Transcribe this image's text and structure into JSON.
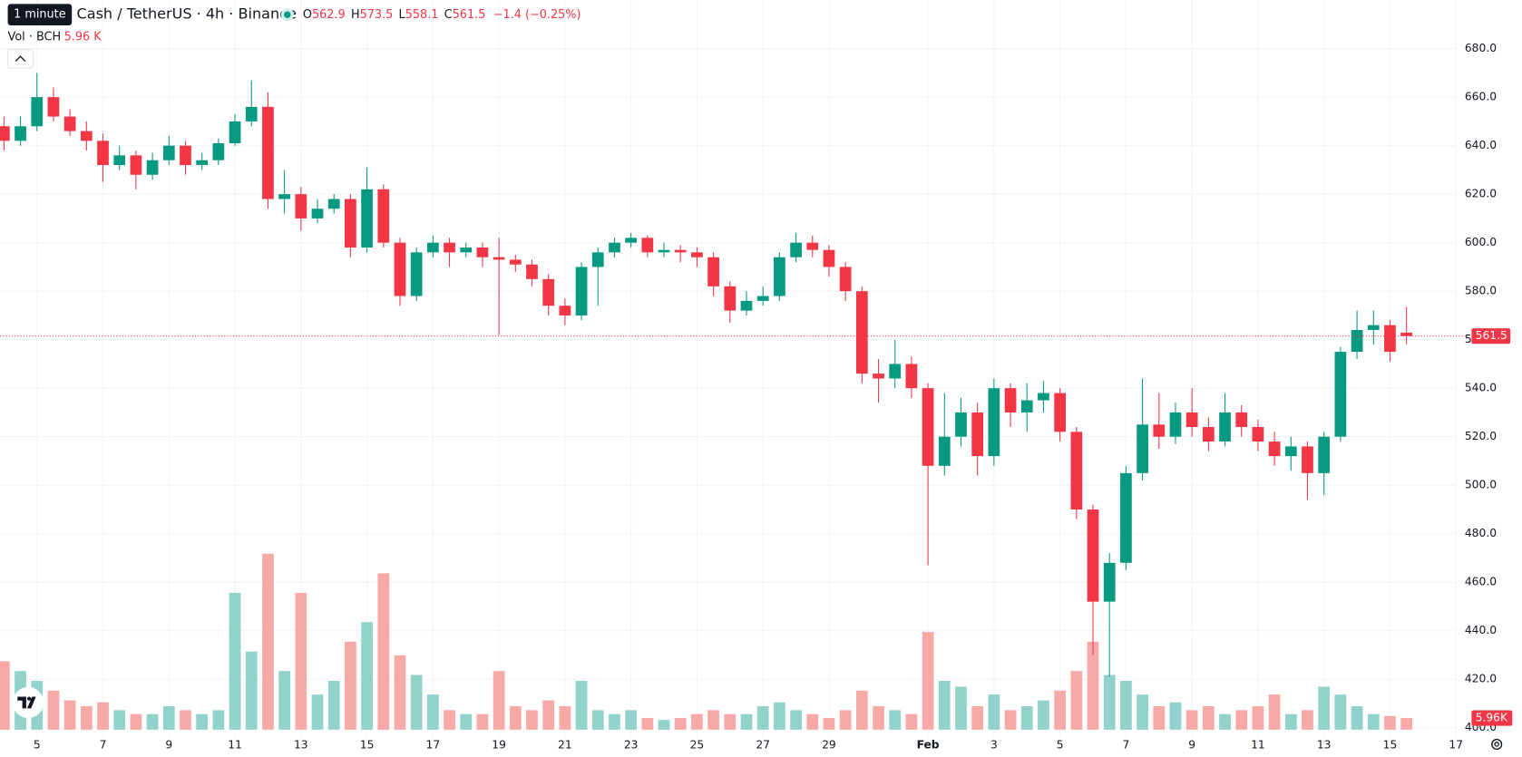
{
  "chart_data": {
    "type": "candlestick",
    "tooltip": "1 minute",
    "title": "Cash / TetherUS · 4h · Binance",
    "legend_prefixes": [
      "O",
      "H",
      "L",
      "C"
    ],
    "change": "−1.4 (−0.25%)",
    "volume_title": "Vol · BCH",
    "volume_legend_label": "5.96 K",
    "volume_tag_label": "5.96K",
    "up_color": "#089981",
    "down_color": "#f23645",
    "volume_up_color": "#92d2cc",
    "volume_down_color": "#f7a9a7",
    "grid": true,
    "xlim": [
      3.88,
      48
    ],
    "xticks": [
      5,
      7,
      9,
      11,
      13,
      15,
      17,
      19,
      21,
      23,
      25,
      27,
      29,
      {
        "value": 32,
        "label": "Feb"
      },
      {
        "value": 34,
        "label": "3"
      },
      {
        "value": 36,
        "label": "5"
      },
      {
        "value": 38,
        "label": "7"
      },
      {
        "value": 40,
        "label": "9"
      },
      {
        "value": 42,
        "label": "11"
      },
      {
        "value": 44,
        "label": "13"
      },
      {
        "value": 46,
        "label": "15"
      },
      {
        "value": 48,
        "label": "17"
      }
    ],
    "ylim": [
      396,
      700
    ],
    "yticks": [
      {
        "value": 400,
        "label": "400.0"
      },
      {
        "value": 420,
        "label": "420.0"
      },
      {
        "value": 440,
        "label": "440.0"
      },
      {
        "value": 460,
        "label": "460.0"
      },
      {
        "value": 480,
        "label": "480.0"
      },
      {
        "value": 500,
        "label": "500.0"
      },
      {
        "value": 520,
        "label": "520.0"
      },
      {
        "value": 540,
        "label": "540.0"
      },
      {
        "value": 560,
        "label": "560.0"
      },
      {
        "value": 580,
        "label": "580.0"
      },
      {
        "value": 600,
        "label": "600.0"
      },
      {
        "value": 620,
        "label": "620.0"
      },
      {
        "value": 640,
        "label": "640.0"
      },
      {
        "value": 660,
        "label": "660.0"
      },
      {
        "value": 680,
        "label": "680.0"
      }
    ],
    "volume_lim": [
      0,
      130
    ],
    "x": [
      4,
      4.5,
      5,
      5.5,
      6,
      6.5,
      7,
      7.5,
      8,
      8.5,
      9,
      9.5,
      10,
      10.5,
      11,
      11.5,
      12,
      12.5,
      13,
      13.5,
      14,
      14.5,
      15,
      15.5,
      16,
      16.5,
      17,
      17.5,
      18,
      18.5,
      19,
      19.5,
      20,
      20.5,
      21,
      21.5,
      22,
      22.5,
      23,
      23.5,
      24,
      24.5,
      25,
      25.5,
      26,
      26.5,
      27,
      27.5,
      28,
      28.5,
      29,
      29.5,
      30,
      30.5,
      31,
      31.5,
      32,
      32.5,
      33,
      33.5,
      34,
      34.5,
      35,
      35.5,
      36,
      36.5,
      37,
      37.5,
      38,
      38.5,
      39,
      39.5,
      40,
      40.5,
      41,
      41.5,
      42,
      42.5,
      43,
      43.5,
      44,
      44.5,
      45,
      45.5,
      46,
      46.5
    ],
    "open": [
      648,
      642,
      648,
      660,
      652,
      646,
      642,
      632,
      636,
      628,
      634,
      640,
      632,
      634,
      641,
      650,
      656,
      618,
      620,
      610,
      614,
      618,
      598,
      622,
      600,
      578,
      596,
      600,
      596,
      598,
      594,
      593,
      591,
      585,
      574,
      570,
      590,
      596,
      600,
      602,
      596,
      597,
      596,
      594,
      582,
      572,
      576,
      578,
      594,
      600,
      597,
      590,
      580,
      546,
      544,
      550,
      540,
      508,
      520,
      530,
      512,
      540,
      530,
      535,
      538,
      522,
      490,
      452,
      468,
      505,
      525,
      520,
      530,
      524,
      518,
      530,
      524,
      518,
      512,
      516,
      505,
      520,
      555,
      564,
      566,
      562.9
    ],
    "high": [
      652,
      652,
      670,
      664,
      655,
      650,
      645,
      640,
      638,
      637,
      644,
      642,
      637,
      643,
      653,
      667,
      662,
      630,
      623,
      618,
      620,
      620,
      631,
      624,
      602,
      598,
      603,
      602,
      600,
      600,
      602,
      595,
      593,
      587,
      577,
      592,
      598,
      602,
      604,
      603,
      600,
      599,
      598,
      596,
      584,
      580,
      582,
      596,
      604,
      603,
      599,
      592,
      582,
      552,
      560,
      553,
      542,
      538,
      536,
      534,
      544,
      542,
      542,
      543,
      540,
      524,
      492,
      472,
      508,
      544,
      538,
      534,
      540,
      528,
      538,
      533,
      527,
      522,
      520,
      518,
      522,
      557,
      572,
      572,
      568,
      573.5
    ],
    "low": [
      638,
      640,
      646,
      650,
      644,
      638,
      625,
      630,
      622,
      626,
      632,
      628,
      630,
      632,
      640,
      648,
      614,
      612,
      605,
      608,
      612,
      594,
      596,
      598,
      574,
      576,
      594,
      590,
      594,
      590,
      562,
      588,
      582,
      570,
      566,
      568,
      574,
      594,
      598,
      594,
      594,
      592,
      590,
      578,
      567,
      570,
      574,
      576,
      592,
      594,
      586,
      576,
      542,
      534,
      540,
      536,
      467,
      504,
      516,
      504,
      508,
      524,
      522,
      530,
      518,
      486,
      430,
      421,
      465,
      502,
      515,
      517,
      520,
      514,
      516,
      520,
      514,
      508,
      506,
      494,
      496,
      518,
      552,
      558,
      551,
      558.1
    ],
    "close": [
      642,
      648,
      660,
      652,
      646,
      642,
      632,
      636,
      628,
      634,
      640,
      632,
      634,
      641,
      650,
      656,
      618,
      620,
      610,
      614,
      618,
      598,
      622,
      600,
      578,
      596,
      600,
      596,
      598,
      594,
      593,
      591,
      585,
      574,
      570,
      590,
      596,
      600,
      602,
      596,
      597,
      596,
      594,
      582,
      572,
      576,
      578,
      594,
      600,
      597,
      590,
      580,
      546,
      544,
      550,
      540,
      508,
      520,
      530,
      512,
      540,
      530,
      535,
      538,
      522,
      490,
      452,
      468,
      505,
      525,
      520,
      530,
      524,
      518,
      530,
      524,
      518,
      512,
      516,
      505,
      520,
      555,
      564,
      566,
      555,
      561.5
    ],
    "volume": [
      35,
      30,
      25,
      20,
      15,
      12,
      14,
      10,
      8,
      8,
      12,
      10,
      8,
      10,
      70,
      40,
      90,
      30,
      70,
      18,
      25,
      45,
      55,
      80,
      38,
      28,
      18,
      10,
      8,
      8,
      30,
      12,
      10,
      15,
      12,
      25,
      10,
      8,
      10,
      6,
      5,
      6,
      8,
      10,
      8,
      8,
      12,
      14,
      10,
      8,
      6,
      10,
      20,
      12,
      10,
      8,
      50,
      25,
      22,
      12,
      18,
      10,
      12,
      15,
      20,
      30,
      45,
      28,
      25,
      18,
      12,
      14,
      10,
      12,
      8,
      10,
      12,
      18,
      8,
      10,
      22,
      18,
      12,
      8,
      7,
      5.96
    ]
  }
}
